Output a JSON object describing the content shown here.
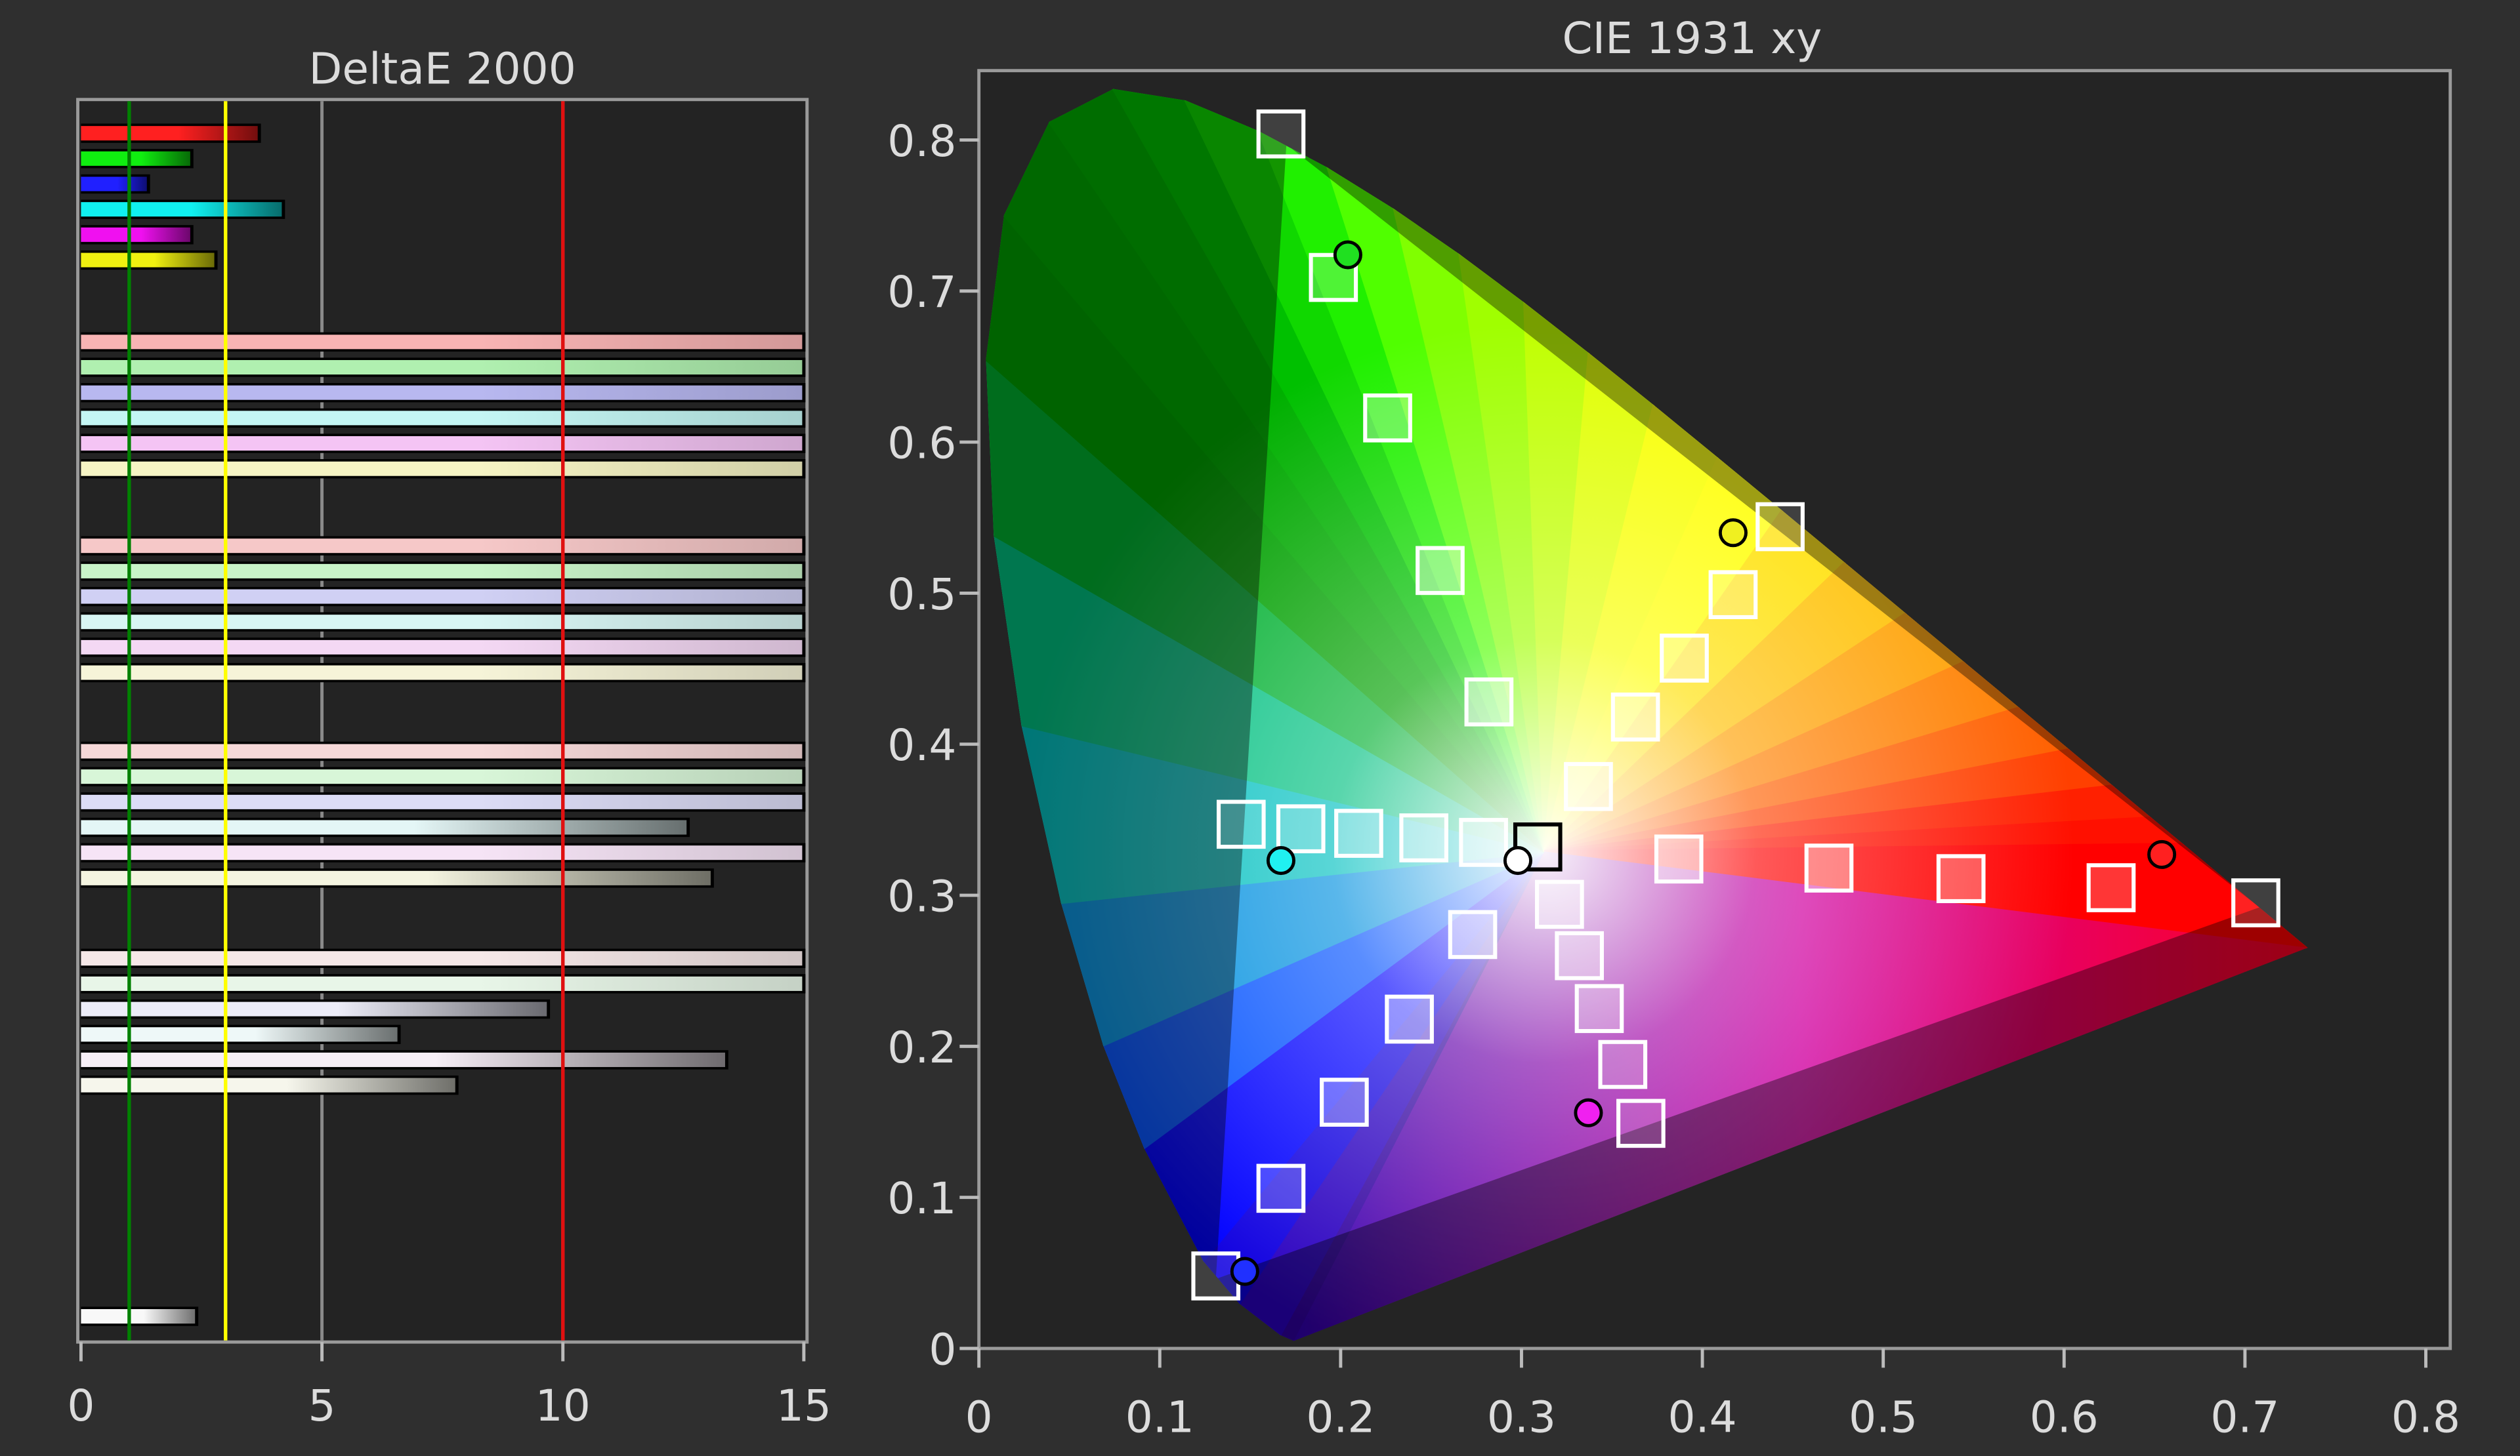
{
  "chart_data": [
    {
      "type": "bar",
      "orientation": "horizontal",
      "title": "DeltaE 2000",
      "xlim": [
        0,
        15
      ],
      "xticks": [
        "0",
        "5",
        "10",
        "15"
      ],
      "grid": true,
      "reference_lines": [
        {
          "value": 1,
          "color": "#008000"
        },
        {
          "value": 3,
          "color": "#ffff00"
        },
        {
          "value": 10,
          "color": "#e01010"
        }
      ],
      "groups": [
        {
          "colors": [
            "#ff2020",
            "#10ee10",
            "#2020ff",
            "#10f0f0",
            "#f010f0",
            "#f0f010"
          ],
          "values": [
            3.7,
            2.3,
            1.4,
            4.2,
            2.3,
            2.8
          ]
        },
        {
          "colors": [
            "#f8b4b4",
            "#b0f0b0",
            "#b8b8f0",
            "#c4f6f4",
            "#f4c4f4",
            "#f6f4c4"
          ],
          "values": [
            15,
            15,
            15,
            15,
            15,
            15
          ]
        },
        {
          "colors": [
            "#f6c8c8",
            "#c8f4c8",
            "#d0d0f4",
            "#d8f6f4",
            "#f4d8f4",
            "#f6f4d8"
          ],
          "values": [
            15,
            15,
            15,
            15,
            15,
            15
          ]
        },
        {
          "colors": [
            "#f6d8d8",
            "#d8f6d8",
            "#dcdcf6",
            "#e4f6f6",
            "#f6e4f6",
            "#f4f4e0"
          ],
          "values": [
            15,
            15,
            15,
            12.6,
            15,
            13.1
          ]
        },
        {
          "colors": [
            "#f6e8e8",
            "#e8f6e8",
            "#ececf8",
            "#eef8f8",
            "#f6eef6",
            "#f6f6ec"
          ],
          "values": [
            15,
            15,
            9.7,
            6.6,
            13.4,
            7.8
          ]
        },
        {
          "colors": [
            "#f8f8f8"
          ],
          "values": [
            2.4
          ]
        }
      ]
    },
    {
      "type": "scatter",
      "title": "CIE 1931 xy",
      "xlim": [
        0,
        0.85
      ],
      "ylim": [
        0,
        0.85
      ],
      "xticks": [
        "0",
        "0.1",
        "0.2",
        "0.3",
        "0.4",
        "0.5",
        "0.6",
        "0.7",
        "0.8"
      ],
      "yticks": [
        "0",
        "0.1",
        "0.2",
        "0.3",
        "0.4",
        "0.5",
        "0.6",
        "0.7",
        "0.8"
      ],
      "gamut_triangle": [
        [
          0.708,
          0.292
        ],
        [
          0.17,
          0.797
        ],
        [
          0.131,
          0.046
        ]
      ],
      "targets": [
        {
          "color": "red",
          "points": [
            [
              0.387,
              0.324
            ],
            [
              0.47,
              0.318
            ],
            [
              0.543,
              0.311
            ],
            [
              0.626,
              0.305
            ],
            [
              0.706,
              0.295
            ]
          ]
        },
        {
          "color": "green",
          "points": [
            [
              0.282,
              0.428
            ],
            [
              0.255,
              0.515
            ],
            [
              0.226,
              0.616
            ],
            [
              0.196,
              0.709
            ],
            [
              0.167,
              0.804
            ]
          ]
        },
        {
          "color": "blue",
          "points": [
            [
              0.273,
              0.274
            ],
            [
              0.238,
              0.218
            ],
            [
              0.202,
              0.163
            ],
            [
              0.167,
              0.106
            ],
            [
              0.131,
              0.048
            ]
          ]
        },
        {
          "color": "cyan",
          "points": [
            [
              0.279,
              0.335
            ],
            [
              0.246,
              0.338
            ],
            [
              0.21,
              0.341
            ],
            [
              0.178,
              0.344
            ],
            [
              0.145,
              0.347
            ]
          ]
        },
        {
          "color": "magenta",
          "points": [
            [
              0.321,
              0.294
            ],
            [
              0.332,
              0.26
            ],
            [
              0.343,
              0.225
            ],
            [
              0.356,
              0.188
            ],
            [
              0.366,
              0.149
            ]
          ]
        },
        {
          "color": "yellow",
          "points": [
            [
              0.337,
              0.372
            ],
            [
              0.363,
              0.418
            ],
            [
              0.39,
              0.457
            ],
            [
              0.417,
              0.499
            ],
            [
              0.443,
              0.544
            ]
          ]
        },
        {
          "color": "white",
          "points": [
            [
              0.309,
              0.332
            ]
          ]
        }
      ],
      "measured": [
        {
          "color": "green",
          "x": 0.204,
          "y": 0.724
        },
        {
          "color": "yellow",
          "x": 0.417,
          "y": 0.54
        },
        {
          "color": "red",
          "x": 0.654,
          "y": 0.327
        },
        {
          "color": "cyan",
          "x": 0.167,
          "y": 0.323
        },
        {
          "color": "white",
          "x": 0.298,
          "y": 0.323
        },
        {
          "color": "magenta",
          "x": 0.337,
          "y": 0.156
        },
        {
          "color": "blue",
          "x": 0.147,
          "y": 0.051
        }
      ]
    }
  ]
}
